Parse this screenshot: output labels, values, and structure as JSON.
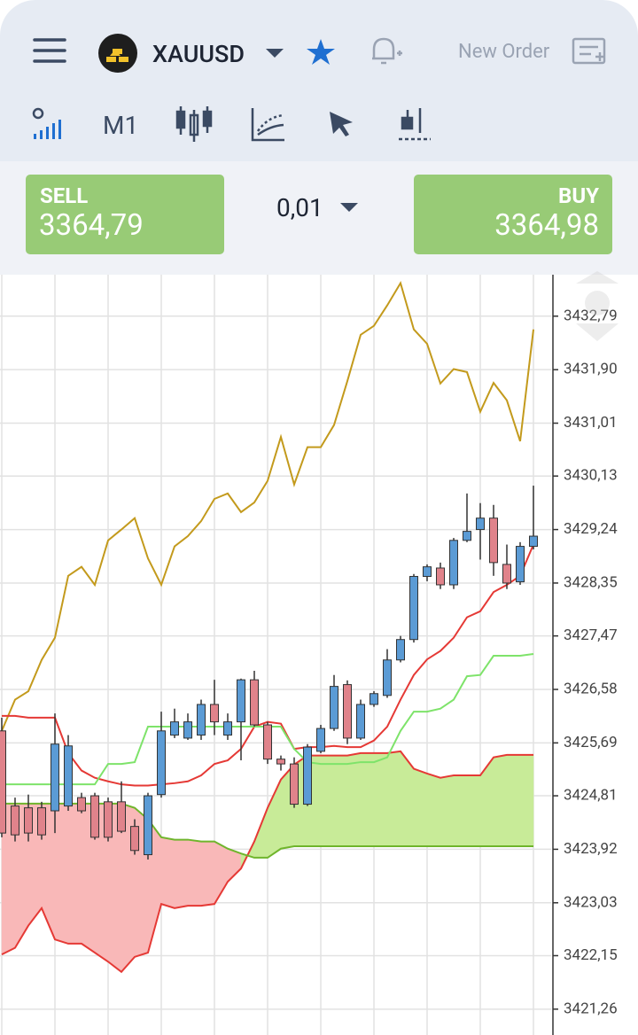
{
  "header": {
    "symbol": "XAUUSD",
    "new_order": "New Order",
    "timeframe": "M1"
  },
  "trade_panel": {
    "sell_label": "SELL",
    "sell_price": "3364,79",
    "volume": "0,01",
    "buy_label": "BUY",
    "buy_price": "3364,98"
  },
  "chart_data": {
    "type": "candlestick",
    "categories": [
      null,
      null,
      null,
      null,
      null,
      null,
      null,
      null,
      null,
      null,
      null,
      null,
      null,
      null,
      null,
      null,
      null,
      null,
      null,
      null,
      null,
      null,
      null,
      null,
      null,
      null,
      null,
      null,
      null,
      null,
      null,
      null,
      null,
      null,
      null,
      null,
      null,
      null,
      null,
      null,
      null
    ],
    "open": [
      3425.89,
      3424.64,
      3424.61,
      3424.61,
      3424.56,
      3424.64,
      3424.78,
      3424.81,
      3424.71,
      3424.71,
      3424.3,
      3423.83,
      3424.83,
      3425.82,
      3425.77,
      3425.82,
      3426.33,
      3425.82,
      3426.04,
      3426.74,
      3425.99,
      3425.42,
      3425.34,
      3424.67,
      3425.55,
      3425.93,
      3426.66,
      3425.77,
      3426.33,
      3426.48,
      3427.07,
      3427.41,
      3428.46,
      3428.6,
      3428.32,
      3429.06,
      3429.24,
      3429.43,
      3428.66,
      3428.37,
      3428.96
    ],
    "high": [
      3426.11,
      3424.78,
      3424.83,
      3424.71,
      3426.18,
      3425.82,
      3424.86,
      3424.86,
      3424.78,
      3425.05,
      3424.42,
      3424.86,
      3426.21,
      3426.26,
      3426.18,
      3426.41,
      3426.74,
      3426.18,
      3426.76,
      3426.89,
      3426.04,
      3425.48,
      3425.45,
      3425.67,
      3425.99,
      3426.82,
      3426.73,
      3426.41,
      3426.55,
      3427.25,
      3427.47,
      3428.5,
      3428.66,
      3428.69,
      3429.1,
      3429.84,
      3429.68,
      3429.65,
      3428.99,
      3429.03,
      3429.97
    ],
    "low": [
      3424.12,
      3424.05,
      3424.05,
      3424.08,
      3424.19,
      3424.56,
      3424.52,
      3424.08,
      3424.05,
      3424.19,
      3423.83,
      3423.75,
      3424.78,
      3425.77,
      3425.74,
      3425.74,
      3425.82,
      3425.74,
      3425.4,
      3425.96,
      3425.34,
      3425.23,
      3424.61,
      3424.64,
      3425.52,
      3425.89,
      3425.67,
      3425.74,
      3426.29,
      3426.44,
      3427.03,
      3427.36,
      3428.38,
      3428.25,
      3428.25,
      3429.03,
      3428.74,
      3428.47,
      3428.25,
      3428.32,
      3428.91
    ],
    "close": [
      3424.19,
      3424.16,
      3424.19,
      3424.16,
      3425.67,
      3425.64,
      3424.56,
      3424.12,
      3424.12,
      3424.22,
      3423.9,
      3424.81,
      3425.89,
      3426.04,
      3426.04,
      3426.33,
      3426.04,
      3426.04,
      3426.74,
      3425.99,
      3425.42,
      3425.34,
      3424.67,
      3425.62,
      3425.93,
      3426.63,
      3425.77,
      3426.33,
      3426.51,
      3427.07,
      3427.41,
      3428.46,
      3428.62,
      3428.32,
      3429.06,
      3429.21,
      3429.43,
      3428.69,
      3428.35,
      3428.96,
      3429.13
    ],
    "up_color": "#5b9bd5",
    "down_color": "#e0838b",
    "lines": [
      {
        "color": "#c39a1c",
        "values": [
          3425.89,
          3426.41,
          3426.55,
          3427.07,
          3427.44,
          3428.47,
          3428.62,
          3428.32,
          3429.06,
          3429.24,
          3429.43,
          3428.76,
          3428.32,
          3428.96,
          3429.13,
          3429.38,
          3429.75,
          3429.84,
          3429.53,
          3429.69,
          3430.05,
          3430.78,
          3429.99,
          3430.61,
          3430.61,
          3430.98,
          3431.71,
          3432.48,
          3432.63,
          3432.97,
          3433.34,
          3432.57,
          3432.33,
          3431.67,
          3431.91,
          3431.86,
          3431.2,
          3431.68,
          3431.39,
          3430.71,
          3432.57
        ]
      },
      {
        "color": "#e53935",
        "values": [
          3426.14,
          3426.14,
          3426.11,
          3426.11,
          3426.11,
          3425.52,
          3425.23,
          3425.11,
          3425.05,
          3425.0,
          3424.98,
          3424.98,
          3425.0,
          3425.02,
          3425.05,
          3425.15,
          3425.34,
          3425.4,
          3425.59,
          3425.96,
          3426.04,
          3426.01,
          3425.59,
          3425.62,
          3425.62,
          3425.64,
          3425.62,
          3425.62,
          3425.73,
          3425.96,
          3426.41,
          3426.82,
          3427.08,
          3427.22,
          3427.44,
          3427.78,
          3427.88,
          3428.2,
          3428.32,
          3428.47,
          3428.99
        ]
      },
      {
        "color": "#7ee36a",
        "values": [
          3425.0,
          3425.0,
          3425.0,
          3425.0,
          3425.0,
          3425.0,
          3425.0,
          3425.0,
          3425.34,
          3425.34,
          3425.37,
          3425.96,
          3425.96,
          3425.96,
          3425.96,
          3425.96,
          3425.96,
          3425.96,
          3425.96,
          3425.96,
          3425.96,
          3425.96,
          3425.59,
          3425.37,
          3425.34,
          3425.34,
          3425.34,
          3425.37,
          3425.37,
          3425.45,
          3425.89,
          3426.21,
          3426.21,
          3426.26,
          3426.41,
          3426.8,
          3426.82,
          3427.14,
          3427.14,
          3427.14,
          3427.17
        ]
      }
    ],
    "cloud": {
      "span_a": [
        3422.17,
        3422.28,
        3422.65,
        3422.94,
        3422.42,
        3422.35,
        3422.35,
        3422.2,
        3422.05,
        3421.88,
        3422.13,
        3422.2,
        3423.01,
        3422.94,
        3422.98,
        3422.98,
        3423.01,
        3423.38,
        3423.6,
        3424.05,
        3424.61,
        3425.08,
        3425.33,
        3425.48,
        3425.48,
        3425.48,
        3425.48,
        3425.52,
        3425.52,
        3425.52,
        3425.55,
        3425.26,
        3425.18,
        3425.11,
        3425.15,
        3425.15,
        3425.15,
        3425.45,
        3425.49,
        3425.49,
        3425.49
      ],
      "span_b": [
        3424.68,
        3424.68,
        3424.68,
        3424.68,
        3424.68,
        3424.68,
        3424.68,
        3424.68,
        3424.68,
        3424.68,
        3424.61,
        3424.42,
        3424.12,
        3424.08,
        3424.08,
        3424.05,
        3424.05,
        3423.93,
        3423.85,
        3423.78,
        3423.78,
        3423.93,
        3423.97,
        3423.97,
        3423.97,
        3423.97,
        3423.97,
        3423.97,
        3423.97,
        3423.97,
        3423.97,
        3423.97,
        3423.97,
        3423.97,
        3423.97,
        3423.97,
        3423.97,
        3423.97,
        3423.97,
        3423.97,
        3423.97
      ],
      "span_a_color": "#e53935",
      "span_b_color": "#6fb52c",
      "up_fill": "#c8eb98",
      "down_fill": "#f9b8b8"
    },
    "ylim": [
      3420.83,
      3433.48
    ],
    "yticks": [
      {
        "value": 3432.79,
        "label": "3432,79"
      },
      {
        "value": 3431.9,
        "label": "3431,90"
      },
      {
        "value": 3431.01,
        "label": "3431,01"
      },
      {
        "value": 3430.13,
        "label": "3430,13"
      },
      {
        "value": 3429.24,
        "label": "3429,24"
      },
      {
        "value": 3428.35,
        "label": "3428,35"
      },
      {
        "value": 3427.47,
        "label": "3427,47"
      },
      {
        "value": 3426.58,
        "label": "3426,58"
      },
      {
        "value": 3425.69,
        "label": "3425,69"
      },
      {
        "value": 3424.81,
        "label": "3424,81"
      },
      {
        "value": 3423.92,
        "label": "3423,92"
      },
      {
        "value": 3423.03,
        "label": "3423,03"
      },
      {
        "value": 3422.15,
        "label": "3422,15"
      },
      {
        "value": 3421.26,
        "label": "3421,26"
      }
    ],
    "grid": true
  }
}
